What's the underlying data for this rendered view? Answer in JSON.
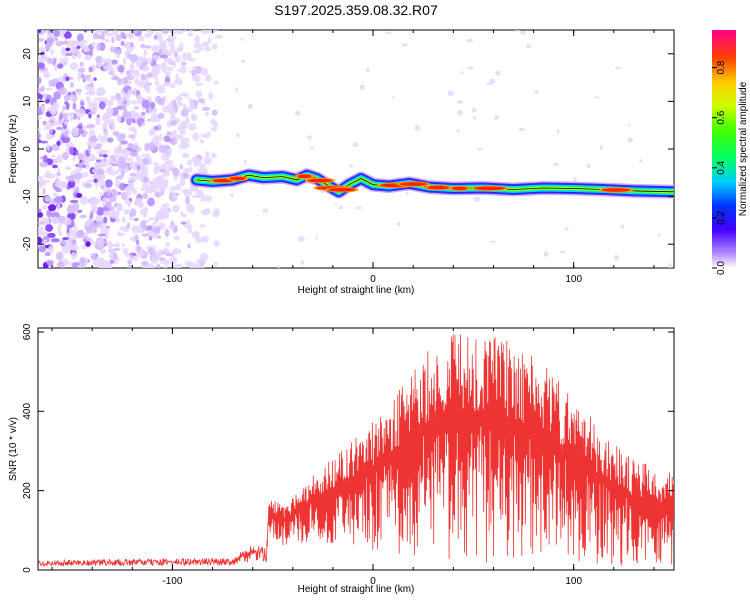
{
  "title": "S197.2025.359.08.32.R07",
  "chart_data": [
    {
      "type": "heatmap",
      "xlabel": "Height of straight line (km)",
      "ylabel": "Frequency (Hz)",
      "xlim": [
        -167,
        150
      ],
      "ylim": [
        -25,
        25
      ],
      "xticks": [
        -100,
        0,
        100
      ],
      "yticks": [
        20,
        10,
        0,
        -10,
        -20
      ],
      "noise_region_x": [
        -167,
        -75
      ],
      "signal_start_x": -88,
      "trace": [
        {
          "x": -88,
          "y": -6.5
        },
        {
          "x": -80,
          "y": -6.8
        },
        {
          "x": -70,
          "y": -6.5
        },
        {
          "x": -62,
          "y": -5.5
        },
        {
          "x": -55,
          "y": -6.0
        },
        {
          "x": -45,
          "y": -5.8
        },
        {
          "x": -38,
          "y": -6.5
        },
        {
          "x": -33,
          "y": -5.5
        },
        {
          "x": -28,
          "y": -6.2
        },
        {
          "x": -22,
          "y": -7.8
        },
        {
          "x": -17,
          "y": -9.0
        },
        {
          "x": -12,
          "y": -7.5
        },
        {
          "x": -6,
          "y": -6.2
        },
        {
          "x": 0,
          "y": -7.5
        },
        {
          "x": 8,
          "y": -7.8
        },
        {
          "x": 18,
          "y": -7.2
        },
        {
          "x": 28,
          "y": -8.0
        },
        {
          "x": 40,
          "y": -8.3
        },
        {
          "x": 55,
          "y": -8.2
        },
        {
          "x": 70,
          "y": -8.5
        },
        {
          "x": 85,
          "y": -8.2
        },
        {
          "x": 100,
          "y": -8.3
        },
        {
          "x": 115,
          "y": -8.5
        },
        {
          "x": 130,
          "y": -8.8
        },
        {
          "x": 150,
          "y": -9.0
        }
      ],
      "colorbar": {
        "label": "Normalized spectral amplitude",
        "range": [
          0,
          0.95
        ],
        "ticks": [
          "0.0",
          "0.2",
          "0.4",
          "0.6",
          "0.8"
        ]
      }
    },
    {
      "type": "line",
      "xlabel": "Height of straight line (km)",
      "ylabel": "SNR (10 * v/v)",
      "xlim": [
        -167,
        150
      ],
      "ylim": [
        0,
        610
      ],
      "xticks": [
        -100,
        0,
        100
      ],
      "yticks": [
        0,
        200,
        400,
        600
      ],
      "color": "#ee3333",
      "envelope": [
        {
          "x": -167,
          "upper": 25,
          "lower": 10
        },
        {
          "x": -70,
          "upper": 30,
          "lower": 12
        },
        {
          "x": -62,
          "upper": 60,
          "lower": 20
        },
        {
          "x": -53,
          "upper": 60,
          "lower": 20
        },
        {
          "x": -52,
          "upper": 190,
          "lower": 90
        },
        {
          "x": -45,
          "upper": 160,
          "lower": 60
        },
        {
          "x": -30,
          "upper": 240,
          "lower": 70
        },
        {
          "x": -10,
          "upper": 330,
          "lower": 40
        },
        {
          "x": 10,
          "upper": 430,
          "lower": 40
        },
        {
          "x": 25,
          "upper": 550,
          "lower": 20
        },
        {
          "x": 45,
          "upper": 610,
          "lower": 10
        },
        {
          "x": 65,
          "upper": 590,
          "lower": 10
        },
        {
          "x": 85,
          "upper": 520,
          "lower": 10
        },
        {
          "x": 110,
          "upper": 380,
          "lower": 10
        },
        {
          "x": 130,
          "upper": 280,
          "lower": 10
        },
        {
          "x": 150,
          "upper": 250,
          "lower": 10
        }
      ]
    }
  ]
}
